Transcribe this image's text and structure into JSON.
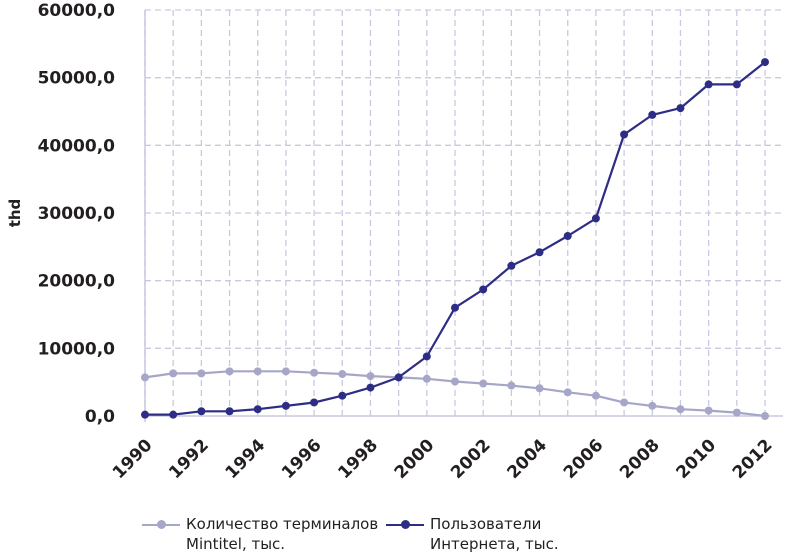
{
  "chart_data": {
    "type": "line",
    "ylabel": "thd",
    "xlabel": "",
    "ylim": [
      0,
      60000
    ],
    "yticks": [
      "0,0",
      "10000,0",
      "20000,0",
      "30000,0",
      "40000,0",
      "50000,0",
      "60000,0"
    ],
    "ytick_values": [
      0,
      10000,
      20000,
      30000,
      40000,
      50000,
      60000
    ],
    "x": [
      1990,
      1991,
      1992,
      1993,
      1994,
      1995,
      1996,
      1997,
      1998,
      1999,
      2000,
      2001,
      2002,
      2003,
      2004,
      2005,
      2006,
      2007,
      2008,
      2009,
      2010,
      2011,
      2012
    ],
    "xticks": [
      "1990",
      "1992",
      "1994",
      "1996",
      "1998",
      "2000",
      "2002",
      "2004",
      "2006",
      "2008",
      "2010",
      "2012"
    ],
    "grid": true,
    "legend_position": "bottom",
    "series": [
      {
        "name": "Количество терминалов Mintitel, тыс.",
        "name_lines": [
          "Количество терминалов",
          "Mintitel, тыс."
        ],
        "color": "#a6a6c8",
        "values": [
          5700,
          6300,
          6300,
          6600,
          6600,
          6600,
          6400,
          6200,
          5900,
          5700,
          5500,
          5100,
          4800,
          4500,
          4100,
          3500,
          3000,
          2000,
          1500,
          1000,
          800,
          500,
          0
        ]
      },
      {
        "name": "Пользователи Интернета, тыс.",
        "name_lines": [
          "Пользователи",
          "Интернета, тыс."
        ],
        "color": "#2e2d86",
        "values": [
          200,
          200,
          700,
          700,
          1000,
          1500,
          2000,
          3000,
          4200,
          5700,
          8800,
          16000,
          18700,
          22200,
          24200,
          26600,
          29200,
          41600,
          44500,
          45500,
          49000,
          49000,
          52300
        ]
      }
    ]
  }
}
